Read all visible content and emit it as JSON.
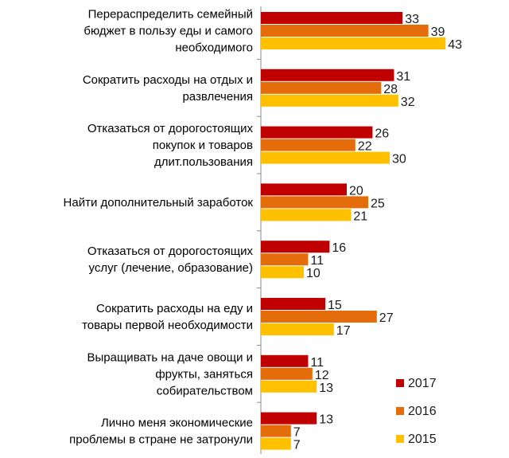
{
  "chart_data": {
    "type": "bar",
    "orientation": "horizontal",
    "title": "",
    "xlabel": "",
    "ylabel": "",
    "grid": false,
    "legend_position": "bottom-right",
    "categories": [
      [
        "Перераспределить семейный",
        "бюджет в пользу еды и самого",
        "необходимого"
      ],
      [
        "Сократить расходы на отдых и",
        "развлечения"
      ],
      [
        "Отказаться от дорогостоящих",
        "покупок и товаров",
        "длит.пользования"
      ],
      [
        "Найти дополнительный заработок"
      ],
      [
        "Отказаться от дорогостоящих",
        "услуг (лечение, образование)"
      ],
      [
        "Сократить расходы на еду и",
        "товары первой необходимости"
      ],
      [
        "Выращивать на даче овощи и",
        "фрукты, заняться",
        "собирательством"
      ],
      [
        "Лично меня экономические",
        "проблемы в стране не затронули"
      ]
    ],
    "series": [
      {
        "name": "2017",
        "color": "#c00000",
        "values": [
          33,
          31,
          26,
          20,
          16,
          15,
          11,
          13
        ]
      },
      {
        "name": "2016",
        "color": "#e46c0a",
        "values": [
          39,
          28,
          22,
          25,
          11,
          27,
          12,
          7
        ]
      },
      {
        "name": "2015",
        "color": "#ffc000",
        "values": [
          43,
          32,
          30,
          21,
          10,
          17,
          13,
          7
        ]
      }
    ],
    "xlim": [
      0,
      45
    ]
  }
}
